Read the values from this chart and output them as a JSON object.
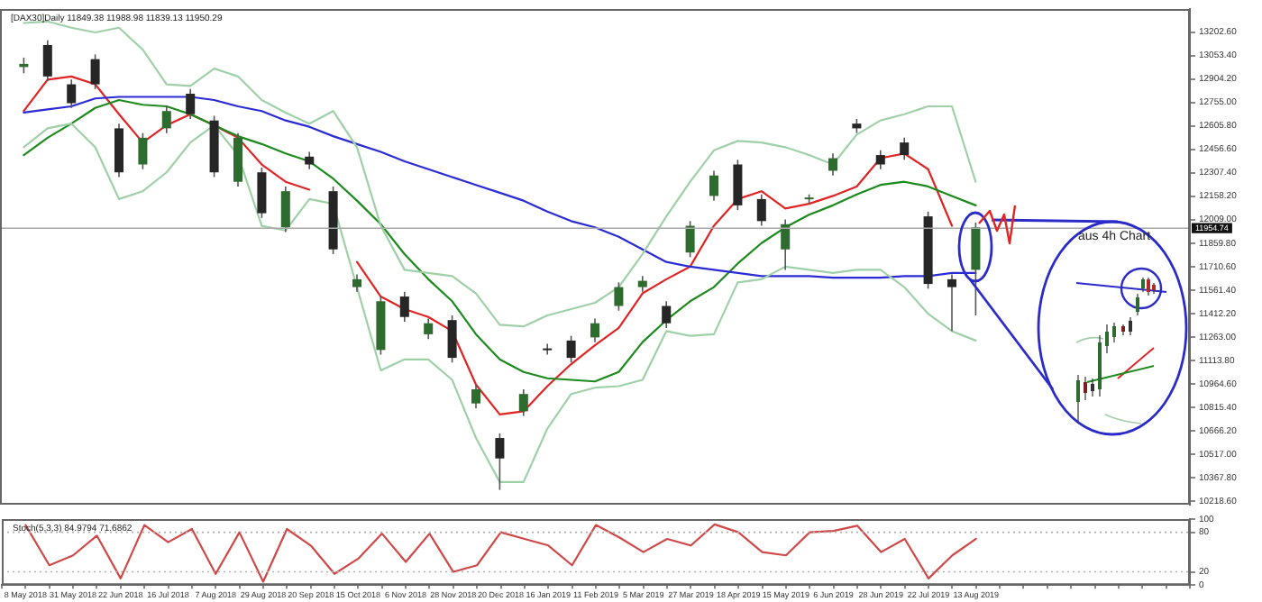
{
  "chart_data": [
    {
      "type": "candlestick",
      "title": "[DAX30]Daily 11849.38 11988.98 11839.13 11950.29",
      "categories": [
        null,
        null,
        null,
        null,
        null,
        null,
        null,
        null,
        null,
        null,
        null,
        null,
        null,
        null,
        null,
        null,
        null,
        null,
        null,
        null,
        null,
        null,
        null,
        null,
        null,
        null,
        null,
        null,
        null,
        null,
        null,
        null,
        null,
        null,
        null,
        null,
        null,
        null,
        null,
        null,
        null,
        null,
        null,
        null,
        null,
        null,
        null,
        null,
        null,
        null,
        null
      ],
      "ohlc": [
        null,
        [
          12980,
          13040,
          12940,
          13000
        ],
        [
          13120,
          13150,
          12890,
          12920
        ],
        [
          12870,
          12900,
          12720,
          12750
        ],
        [
          13030,
          13060,
          12840,
          12870
        ],
        [
          12590,
          12620,
          12280,
          12310
        ],
        [
          12360,
          12560,
          12330,
          12530
        ],
        [
          12590,
          12730,
          12560,
          12700
        ],
        [
          12810,
          12840,
          12650,
          12680
        ],
        [
          12640,
          12670,
          12280,
          12310
        ],
        [
          12250,
          12560,
          12220,
          12530
        ],
        [
          12310,
          12340,
          12020,
          12050
        ],
        [
          11960,
          12220,
          11930,
          12190
        ],
        [
          12410,
          12440,
          12330,
          12360
        ],
        [
          12190,
          12220,
          11790,
          11820
        ],
        [
          11580,
          11660,
          11550,
          11630
        ],
        [
          11180,
          11520,
          11150,
          11490
        ],
        [
          11520,
          11550,
          11360,
          11390
        ],
        [
          11280,
          11380,
          11250,
          11350
        ],
        [
          11370,
          11400,
          11100,
          11130
        ],
        [
          10840,
          10960,
          10810,
          10930
        ],
        [
          10620,
          10650,
          10290,
          10490
        ],
        [
          10790,
          10930,
          10760,
          10900
        ],
        [
          11190,
          11220,
          11150,
          11180
        ],
        [
          11240,
          11270,
          11100,
          11130
        ],
        [
          11260,
          11380,
          11230,
          11350
        ],
        [
          11460,
          11610,
          11430,
          11580
        ],
        [
          11580,
          11650,
          11550,
          11620
        ],
        [
          11460,
          11490,
          11320,
          11350
        ],
        [
          11800,
          12000,
          11770,
          11970
        ],
        [
          12160,
          12320,
          12130,
          12290
        ],
        [
          12360,
          12390,
          12070,
          12100
        ],
        [
          12140,
          12170,
          11970,
          12000
        ],
        [
          11820,
          12010,
          11690,
          11980
        ],
        [
          12140,
          12170,
          12110,
          12150
        ],
        [
          12320,
          12430,
          12290,
          12400
        ],
        [
          12620,
          12650,
          12560,
          12590
        ],
        [
          12420,
          12450,
          12330,
          12360
        ],
        [
          12500,
          12530,
          12390,
          12420
        ],
        [
          12030,
          12060,
          11570,
          11600
        ],
        [
          11630,
          11660,
          11300,
          11580
        ],
        [
          11690,
          11990,
          11400,
          11960
        ],
        null,
        null,
        null,
        null,
        null,
        null,
        null,
        null,
        null
      ],
      "series": [
        {
          "type": "line",
          "color": "#9fd0a8",
          "values": [
            null,
            13260,
            13270,
            13230,
            13200,
            13230,
            13090,
            12870,
            12860,
            12970,
            12920,
            12770,
            12690,
            12620,
            12700,
            12470,
            11970,
            11690,
            11670,
            11650,
            11540,
            11340,
            11330,
            11400,
            11440,
            11480,
            11580,
            11790,
            12030,
            12250,
            12450,
            12510,
            12500,
            12470,
            12420,
            12360,
            12550,
            12640,
            12680,
            12730,
            12730,
            12250,
            null,
            null,
            null,
            null,
            null,
            null,
            null,
            null,
            null
          ]
        },
        {
          "type": "line",
          "color": "#9fd0a8",
          "values": [
            null,
            12470,
            12590,
            12620,
            12470,
            12140,
            12190,
            12310,
            12500,
            12610,
            12420,
            11970,
            11940,
            12140,
            12110,
            11580,
            11050,
            11120,
            11120,
            10990,
            10620,
            10340,
            10340,
            10680,
            10900,
            10940,
            10950,
            10990,
            11300,
            11270,
            11280,
            11610,
            11630,
            11710,
            11690,
            11670,
            11690,
            11690,
            11580,
            11410,
            11300,
            11240,
            null,
            null,
            null,
            null,
            null,
            null,
            null,
            null,
            null
          ]
        },
        {
          "type": "line",
          "color": "#2b2bd6",
          "values": [
            null,
            12690,
            12710,
            12730,
            12780,
            12790,
            12790,
            12790,
            12790,
            12770,
            12730,
            12700,
            12640,
            12600,
            12540,
            12490,
            12440,
            12380,
            12330,
            12280,
            12230,
            12180,
            12130,
            12060,
            12000,
            11960,
            11900,
            11820,
            11740,
            11710,
            11690,
            11670,
            11650,
            11650,
            11650,
            11640,
            11640,
            11640,
            11650,
            11650,
            11670,
            11670,
            null,
            null,
            null,
            null,
            null,
            null,
            null,
            null,
            null
          ]
        },
        {
          "type": "line",
          "color": "#1d8a1d",
          "values": [
            null,
            12420,
            12530,
            12620,
            12720,
            12770,
            12740,
            12730,
            12680,
            12610,
            12540,
            12490,
            12430,
            12380,
            12270,
            12130,
            11980,
            11790,
            11630,
            11490,
            11280,
            11120,
            11040,
            11000,
            10990,
            10980,
            11040,
            11230,
            11370,
            11490,
            11580,
            11730,
            11860,
            11960,
            12040,
            12100,
            12170,
            12230,
            12250,
            12220,
            12160,
            12100,
            null,
            null,
            null,
            null,
            null,
            null,
            null,
            null,
            null
          ]
        },
        {
          "type": "line",
          "color": "#e02424",
          "values": [
            null,
            12700,
            12900,
            12920,
            12870,
            12680,
            12500,
            12610,
            12680,
            12610,
            12530,
            12360,
            12250,
            12200,
            null,
            11740,
            11520,
            11440,
            11390,
            11300,
            10960,
            10770,
            10790,
            10950,
            11090,
            11210,
            11320,
            11540,
            11630,
            11710,
            11970,
            12140,
            12190,
            12080,
            12110,
            12160,
            12220,
            12400,
            12430,
            12330,
            11970,
            null,
            null,
            null,
            null,
            null,
            null,
            null,
            null,
            null,
            null
          ]
        }
      ],
      "ylim": [
        10196,
        13349
      ],
      "yticks": [
        {
          "value": 13202.6,
          "label": "13202.60"
        },
        {
          "value": 13053.4,
          "label": "13053.40"
        },
        {
          "value": 12904.2,
          "label": "12904.20"
        },
        {
          "value": 12755,
          "label": "12755.00"
        },
        {
          "value": 12605.8,
          "label": "12605.80"
        },
        {
          "value": 12456.6,
          "label": "12456.60"
        },
        {
          "value": 12307.4,
          "label": "12307.40"
        },
        {
          "value": 12158.2,
          "label": "12158.20"
        },
        {
          "value": 12009,
          "label": "12009.00"
        },
        {
          "value": 11859.8,
          "label": "11859.80"
        },
        {
          "value": 11710.6,
          "label": "11710.60"
        },
        {
          "value": 11561.4,
          "label": "11561.40"
        },
        {
          "value": 11412.2,
          "label": "11412.20"
        },
        {
          "value": 11263,
          "label": "11263.00"
        },
        {
          "value": 11113.8,
          "label": "11113.80"
        },
        {
          "value": 10964.6,
          "label": "10964.60"
        },
        {
          "value": 10815.4,
          "label": "10815.40"
        },
        {
          "value": 10666.2,
          "label": "10666.20"
        },
        {
          "value": 10517,
          "label": "10517.00"
        },
        {
          "value": 10367.8,
          "label": "10367.80"
        },
        {
          "value": 10218.6,
          "label": "10218.60"
        }
      ],
      "tick_labels": "y",
      "ref_lines": [
        {
          "axis": "y",
          "value": 11954.74,
          "label": "11954.74",
          "color": "#a8a8a8"
        }
      ],
      "annotations": [
        "aus 4h Chart"
      ]
    },
    {
      "type": "line",
      "title": "Stoch(5,3,3) 84.9794 71.6862",
      "categories": [
        null,
        "8 May 2018",
        null,
        "31 May 2018",
        null,
        "22 Jun 2018",
        null,
        "16 Jul 2018",
        null,
        "7 Aug 2018",
        null,
        "29 Aug 2018",
        null,
        "20 Sep 2018",
        null,
        "15 Oct 2018",
        null,
        "6 Nov 2018",
        null,
        "28 Nov 2018",
        null,
        "20 Dec 2018",
        null,
        "16 Jan 2019",
        null,
        "11 Feb 2019",
        null,
        "5 Mar 2019",
        null,
        "27 Mar 2019",
        null,
        "18 Apr 2019",
        null,
        "15 May 2019",
        null,
        "6 Jun 2019",
        null,
        "28 Jun 2019",
        null,
        "22 Jul 2019",
        null,
        "13 Aug 2019",
        null,
        null,
        null,
        null,
        null,
        null,
        null,
        null,
        null
      ],
      "series": [
        {
          "color": "#d04848",
          "values": [
            null,
            91,
            30,
            45,
            75,
            10,
            91,
            65,
            85,
            17,
            80,
            5,
            85,
            60,
            17,
            40,
            78,
            35,
            78,
            20,
            30,
            80,
            70,
            60,
            30,
            91,
            72,
            50,
            70,
            60,
            92,
            80,
            50,
            45,
            80,
            82,
            90,
            50,
            70,
            10,
            45,
            70,
            null,
            null,
            null,
            null,
            null,
            null,
            null,
            null,
            null
          ]
        }
      ],
      "ylim": [
        0,
        100
      ],
      "yticks": [
        0,
        20,
        80,
        100
      ],
      "ref_lines": [
        {
          "axis": "y",
          "value": 80,
          "color": "#b0b0b0",
          "line_style": "dotted"
        },
        {
          "axis": "y",
          "value": 20,
          "color": "#b0b0b0",
          "line_style": "dotted"
        }
      ]
    }
  ]
}
